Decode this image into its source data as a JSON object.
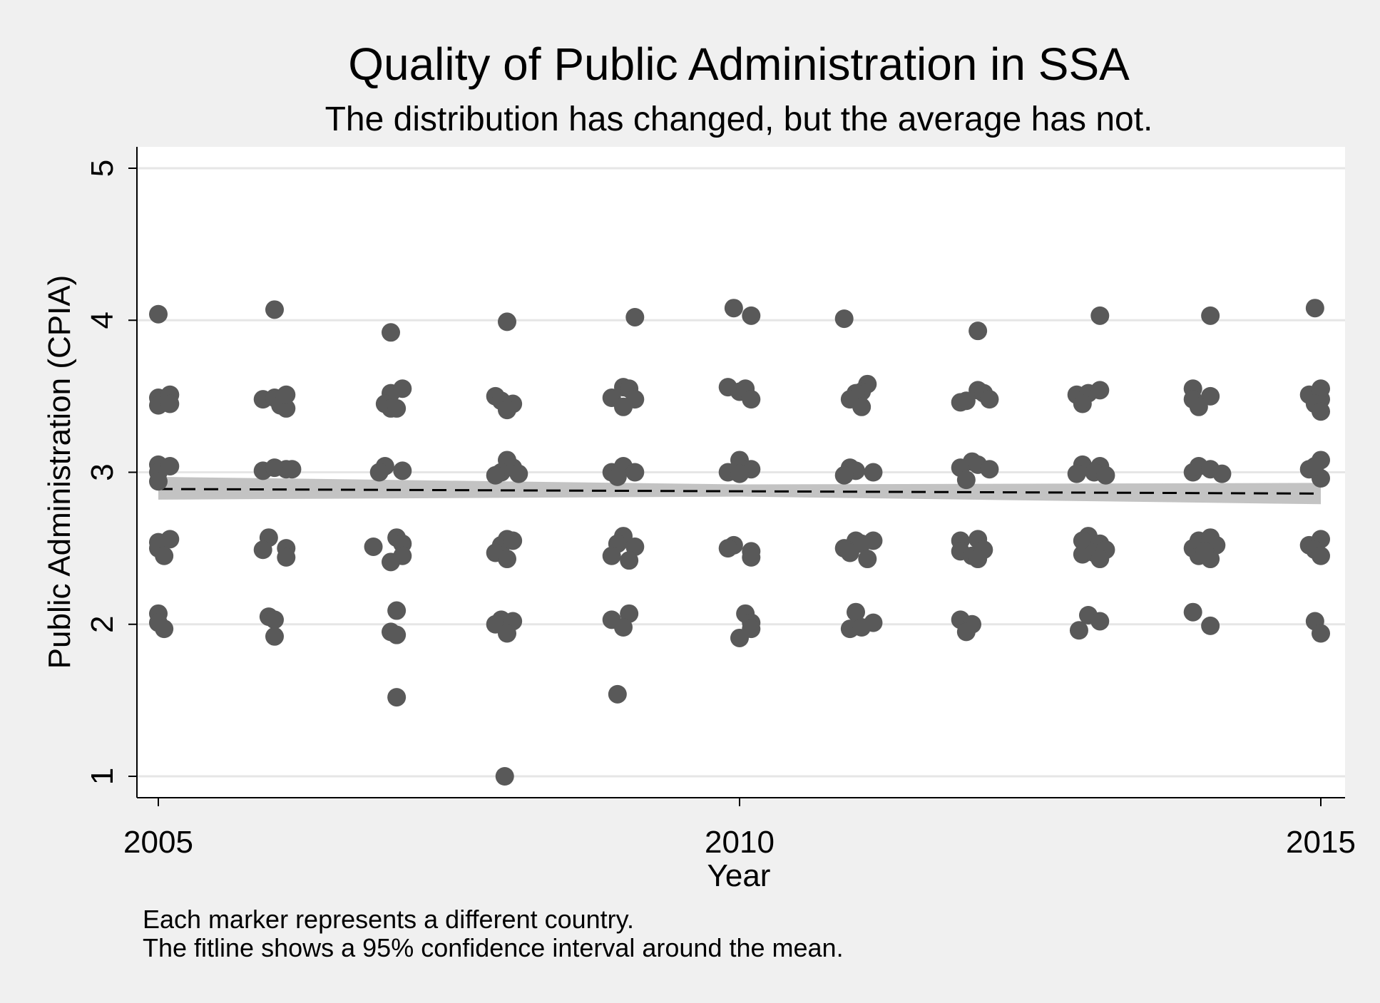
{
  "chart_data": {
    "type": "scatter",
    "title": "Quality of Public Administration in SSA",
    "subtitle": "The distribution has changed, but the average has not.",
    "xlabel": "Year",
    "ylabel": "Public Administration (CPIA)",
    "xlim": [
      2005,
      2015
    ],
    "ylim": [
      1,
      5
    ],
    "xticks": [
      2005,
      2010,
      2015
    ],
    "yticks": [
      1,
      2,
      3,
      4,
      5
    ],
    "grid": "horizontal",
    "points": [
      {
        "x": 2005.0,
        "y": 4.04
      },
      {
        "x": 2005.0,
        "y": 3.49
      },
      {
        "x": 2005.1,
        "y": 3.51
      },
      {
        "x": 2005.0,
        "y": 3.44
      },
      {
        "x": 2005.1,
        "y": 3.45
      },
      {
        "x": 2005.0,
        "y": 3.05
      },
      {
        "x": 2005.0,
        "y": 3.0
      },
      {
        "x": 2005.0,
        "y": 2.94
      },
      {
        "x": 2005.1,
        "y": 3.04
      },
      {
        "x": 2005.0,
        "y": 2.54
      },
      {
        "x": 2005.0,
        "y": 2.5
      },
      {
        "x": 2005.1,
        "y": 2.56
      },
      {
        "x": 2005.05,
        "y": 2.45
      },
      {
        "x": 2005.0,
        "y": 2.07
      },
      {
        "x": 2005.0,
        "y": 2.01
      },
      {
        "x": 2005.05,
        "y": 1.97
      },
      {
        "x": 2006.0,
        "y": 4.07
      },
      {
        "x": 2005.9,
        "y": 3.48
      },
      {
        "x": 2006.0,
        "y": 3.49
      },
      {
        "x": 2006.05,
        "y": 3.44
      },
      {
        "x": 2006.1,
        "y": 3.42
      },
      {
        "x": 2006.1,
        "y": 3.51
      },
      {
        "x": 2005.9,
        "y": 3.01
      },
      {
        "x": 2006.0,
        "y": 3.03
      },
      {
        "x": 2006.1,
        "y": 3.02
      },
      {
        "x": 2006.15,
        "y": 3.02
      },
      {
        "x": 2005.95,
        "y": 2.57
      },
      {
        "x": 2005.9,
        "y": 2.49
      },
      {
        "x": 2006.1,
        "y": 2.5
      },
      {
        "x": 2006.1,
        "y": 2.44
      },
      {
        "x": 2005.95,
        "y": 2.05
      },
      {
        "x": 2006.0,
        "y": 2.03
      },
      {
        "x": 2006.0,
        "y": 1.92
      },
      {
        "x": 2007.0,
        "y": 3.92
      },
      {
        "x": 2007.0,
        "y": 3.52
      },
      {
        "x": 2007.1,
        "y": 3.55
      },
      {
        "x": 2006.95,
        "y": 3.45
      },
      {
        "x": 2007.0,
        "y": 3.42
      },
      {
        "x": 2007.05,
        "y": 3.42
      },
      {
        "x": 2006.95,
        "y": 3.04
      },
      {
        "x": 2006.9,
        "y": 3.0
      },
      {
        "x": 2007.1,
        "y": 3.01
      },
      {
        "x": 2006.85,
        "y": 2.51
      },
      {
        "x": 2007.05,
        "y": 2.57
      },
      {
        "x": 2007.1,
        "y": 2.53
      },
      {
        "x": 2007.1,
        "y": 2.45
      },
      {
        "x": 2007.0,
        "y": 2.41
      },
      {
        "x": 2007.05,
        "y": 2.09
      },
      {
        "x": 2007.0,
        "y": 1.95
      },
      {
        "x": 2007.05,
        "y": 1.93
      },
      {
        "x": 2007.05,
        "y": 1.52
      },
      {
        "x": 2008.0,
        "y": 3.99
      },
      {
        "x": 2007.9,
        "y": 3.5
      },
      {
        "x": 2007.95,
        "y": 3.47
      },
      {
        "x": 2008.05,
        "y": 3.45
      },
      {
        "x": 2008.0,
        "y": 3.41
      },
      {
        "x": 2008.0,
        "y": 3.08
      },
      {
        "x": 2008.05,
        "y": 3.03
      },
      {
        "x": 2007.95,
        "y": 3.0
      },
      {
        "x": 2008.1,
        "y": 2.99
      },
      {
        "x": 2007.9,
        "y": 2.98
      },
      {
        "x": 2008.0,
        "y": 2.56
      },
      {
        "x": 2007.95,
        "y": 2.52
      },
      {
        "x": 2008.05,
        "y": 2.55
      },
      {
        "x": 2007.9,
        "y": 2.47
      },
      {
        "x": 2008.0,
        "y": 2.43
      },
      {
        "x": 2007.95,
        "y": 2.03
      },
      {
        "x": 2007.9,
        "y": 2.0
      },
      {
        "x": 2008.05,
        "y": 2.02
      },
      {
        "x": 2008.0,
        "y": 1.94
      },
      {
        "x": 2007.98,
        "y": 1.0
      },
      {
        "x": 2009.1,
        "y": 4.02
      },
      {
        "x": 2009.0,
        "y": 3.56
      },
      {
        "x": 2009.05,
        "y": 3.55
      },
      {
        "x": 2008.9,
        "y": 3.49
      },
      {
        "x": 2009.1,
        "y": 3.48
      },
      {
        "x": 2009.0,
        "y": 3.43
      },
      {
        "x": 2008.9,
        "y": 3.0
      },
      {
        "x": 2009.0,
        "y": 3.04
      },
      {
        "x": 2009.1,
        "y": 3.0
      },
      {
        "x": 2008.95,
        "y": 2.97
      },
      {
        "x": 2009.0,
        "y": 2.58
      },
      {
        "x": 2008.95,
        "y": 2.53
      },
      {
        "x": 2009.1,
        "y": 2.51
      },
      {
        "x": 2008.9,
        "y": 2.45
      },
      {
        "x": 2009.05,
        "y": 2.42
      },
      {
        "x": 2008.9,
        "y": 2.03
      },
      {
        "x": 2009.05,
        "y": 2.07
      },
      {
        "x": 2009.0,
        "y": 1.98
      },
      {
        "x": 2008.95,
        "y": 1.54
      },
      {
        "x": 2009.95,
        "y": 4.08
      },
      {
        "x": 2010.1,
        "y": 4.03
      },
      {
        "x": 2009.9,
        "y": 3.56
      },
      {
        "x": 2010.0,
        "y": 3.53
      },
      {
        "x": 2010.05,
        "y": 3.55
      },
      {
        "x": 2010.1,
        "y": 3.48
      },
      {
        "x": 2009.9,
        "y": 3.0
      },
      {
        "x": 2010.0,
        "y": 3.08
      },
      {
        "x": 2010.05,
        "y": 3.02
      },
      {
        "x": 2010.1,
        "y": 3.02
      },
      {
        "x": 2010.0,
        "y": 2.99
      },
      {
        "x": 2009.95,
        "y": 2.52
      },
      {
        "x": 2009.9,
        "y": 2.5
      },
      {
        "x": 2010.1,
        "y": 2.48
      },
      {
        "x": 2010.1,
        "y": 2.44
      },
      {
        "x": 2010.05,
        "y": 2.07
      },
      {
        "x": 2010.1,
        "y": 2.01
      },
      {
        "x": 2010.1,
        "y": 1.97
      },
      {
        "x": 2010.0,
        "y": 1.91
      },
      {
        "x": 2010.9,
        "y": 4.01
      },
      {
        "x": 2011.1,
        "y": 3.58
      },
      {
        "x": 2011.05,
        "y": 3.53
      },
      {
        "x": 2011.0,
        "y": 3.52
      },
      {
        "x": 2010.95,
        "y": 3.48
      },
      {
        "x": 2011.05,
        "y": 3.43
      },
      {
        "x": 2010.95,
        "y": 3.03
      },
      {
        "x": 2011.0,
        "y": 3.01
      },
      {
        "x": 2011.15,
        "y": 3.0
      },
      {
        "x": 2010.9,
        "y": 2.98
      },
      {
        "x": 2011.0,
        "y": 2.55
      },
      {
        "x": 2010.9,
        "y": 2.5
      },
      {
        "x": 2011.05,
        "y": 2.53
      },
      {
        "x": 2011.15,
        "y": 2.55
      },
      {
        "x": 2010.95,
        "y": 2.47
      },
      {
        "x": 2011.1,
        "y": 2.43
      },
      {
        "x": 2011.0,
        "y": 2.08
      },
      {
        "x": 2011.15,
        "y": 2.01
      },
      {
        "x": 2010.95,
        "y": 1.97
      },
      {
        "x": 2011.05,
        "y": 1.98
      },
      {
        "x": 2012.05,
        "y": 3.93
      },
      {
        "x": 2012.05,
        "y": 3.54
      },
      {
        "x": 2012.1,
        "y": 3.52
      },
      {
        "x": 2011.9,
        "y": 3.46
      },
      {
        "x": 2011.95,
        "y": 3.47
      },
      {
        "x": 2012.15,
        "y": 3.48
      },
      {
        "x": 2011.9,
        "y": 3.03
      },
      {
        "x": 2012.0,
        "y": 3.07
      },
      {
        "x": 2012.05,
        "y": 3.05
      },
      {
        "x": 2012.15,
        "y": 3.02
      },
      {
        "x": 2011.95,
        "y": 2.95
      },
      {
        "x": 2011.9,
        "y": 2.55
      },
      {
        "x": 2012.05,
        "y": 2.56
      },
      {
        "x": 2011.9,
        "y": 2.48
      },
      {
        "x": 2012.0,
        "y": 2.45
      },
      {
        "x": 2012.1,
        "y": 2.49
      },
      {
        "x": 2012.05,
        "y": 2.43
      },
      {
        "x": 2011.9,
        "y": 2.03
      },
      {
        "x": 2012.0,
        "y": 2.0
      },
      {
        "x": 2011.95,
        "y": 1.95
      },
      {
        "x": 2013.1,
        "y": 4.03
      },
      {
        "x": 2012.9,
        "y": 3.51
      },
      {
        "x": 2013.0,
        "y": 3.52
      },
      {
        "x": 2013.1,
        "y": 3.54
      },
      {
        "x": 2012.95,
        "y": 3.45
      },
      {
        "x": 2012.95,
        "y": 3.05
      },
      {
        "x": 2013.1,
        "y": 3.04
      },
      {
        "x": 2012.9,
        "y": 2.99
      },
      {
        "x": 2013.05,
        "y": 3.0
      },
      {
        "x": 2013.15,
        "y": 2.98
      },
      {
        "x": 2013.0,
        "y": 2.58
      },
      {
        "x": 2012.95,
        "y": 2.55
      },
      {
        "x": 2013.1,
        "y": 2.53
      },
      {
        "x": 2012.95,
        "y": 2.46
      },
      {
        "x": 2013.05,
        "y": 2.47
      },
      {
        "x": 2013.15,
        "y": 2.49
      },
      {
        "x": 2013.1,
        "y": 2.43
      },
      {
        "x": 2013.0,
        "y": 2.06
      },
      {
        "x": 2013.1,
        "y": 2.02
      },
      {
        "x": 2012.92,
        "y": 1.96
      },
      {
        "x": 2014.05,
        "y": 4.03
      },
      {
        "x": 2013.9,
        "y": 3.55
      },
      {
        "x": 2014.05,
        "y": 3.5
      },
      {
        "x": 2013.9,
        "y": 3.48
      },
      {
        "x": 2013.95,
        "y": 3.43
      },
      {
        "x": 2013.9,
        "y": 3.0
      },
      {
        "x": 2013.95,
        "y": 3.04
      },
      {
        "x": 2014.05,
        "y": 3.02
      },
      {
        "x": 2014.15,
        "y": 2.99
      },
      {
        "x": 2013.9,
        "y": 2.5
      },
      {
        "x": 2013.95,
        "y": 2.55
      },
      {
        "x": 2014.05,
        "y": 2.57
      },
      {
        "x": 2014.1,
        "y": 2.52
      },
      {
        "x": 2013.95,
        "y": 2.45
      },
      {
        "x": 2014.05,
        "y": 2.43
      },
      {
        "x": 2014.0,
        "y": 2.48
      },
      {
        "x": 2013.9,
        "y": 2.08
      },
      {
        "x": 2014.05,
        "y": 1.99
      },
      {
        "x": 2014.95,
        "y": 4.08
      },
      {
        "x": 2014.9,
        "y": 3.51
      },
      {
        "x": 2015.0,
        "y": 3.48
      },
      {
        "x": 2015.0,
        "y": 3.55
      },
      {
        "x": 2014.95,
        "y": 3.45
      },
      {
        "x": 2015.0,
        "y": 3.4
      },
      {
        "x": 2014.9,
        "y": 3.02
      },
      {
        "x": 2015.0,
        "y": 3.08
      },
      {
        "x": 2015.0,
        "y": 2.96
      },
      {
        "x": 2014.95,
        "y": 3.04
      },
      {
        "x": 2014.9,
        "y": 2.52
      },
      {
        "x": 2015.0,
        "y": 2.56
      },
      {
        "x": 2014.95,
        "y": 2.49
      },
      {
        "x": 2015.0,
        "y": 2.45
      },
      {
        "x": 2014.95,
        "y": 2.02
      },
      {
        "x": 2015.0,
        "y": 1.94
      }
    ],
    "fitline": {
      "x": [
        2005,
        2015
      ],
      "y": [
        2.89,
        2.86
      ],
      "style": "dashed",
      "color": "#000000"
    },
    "ci_band": {
      "x": [
        2005,
        2010,
        2015
      ],
      "lower": [
        2.82,
        2.84,
        2.79
      ],
      "upper": [
        2.97,
        2.92,
        2.93
      ],
      "color": "#bdbdbd"
    },
    "marker_color": "#595959",
    "notes": [
      "Each marker represents a different country.",
      "The fitline shows a 95% confidence interval around the mean."
    ]
  }
}
